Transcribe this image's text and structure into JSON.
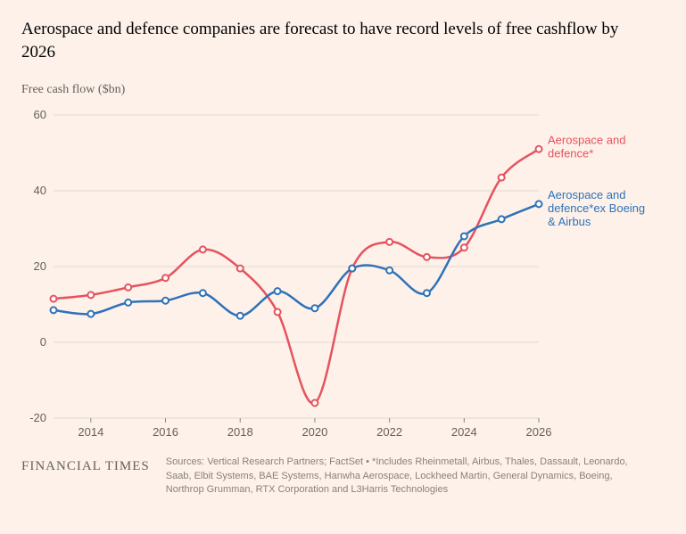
{
  "title": "Aerospace and defence companies are forecast to have record levels of free cashflow by 2026",
  "subtitle": "Free cash flow ($bn)",
  "brand": "FINANCIAL TIMES",
  "source": "Sources: Vertical Research Partners; FactSet • *Includes Rheinmetall, Airbus, Thales, Dassault, Leonardo, Saab, Elbit Systems, BAE Systems, Hanwha Aerospace, Lockheed Martin, General Dynamics, Boeing, Northrop Grumman, RTX Corporation and L3Harris Technologies",
  "chart": {
    "type": "line",
    "background_color": "#fdf1ea",
    "grid_color": "#e3d6cd",
    "axis_text_color": "#66605c",
    "x": {
      "years": [
        2013,
        2014,
        2015,
        2016,
        2017,
        2018,
        2019,
        2020,
        2021,
        2022,
        2023,
        2024,
        2025,
        2026
      ],
      "tick_labels": [
        "2014",
        "2016",
        "2018",
        "2020",
        "2022",
        "2024",
        "2026"
      ],
      "tick_years": [
        2014,
        2016,
        2018,
        2020,
        2022,
        2024,
        2026
      ]
    },
    "y": {
      "min": -20,
      "max": 60,
      "ticks": [
        -20,
        0,
        20,
        40,
        60
      ]
    },
    "series": [
      {
        "id": "ad",
        "label": "Aerospace and defence*",
        "color": "#e5535e",
        "values": [
          11.5,
          12.5,
          14.5,
          17,
          24.5,
          19.5,
          8,
          -16,
          19.5,
          26.5,
          22.5,
          25,
          43.5,
          51
        ]
      },
      {
        "id": "ad_ex",
        "label": "Aerospace and defence*ex Boeing & Airbus",
        "color": "#2e72b8",
        "values": [
          8.5,
          7.5,
          10.5,
          11,
          13,
          7,
          13.5,
          9,
          19.5,
          19,
          13,
          28,
          32.5,
          36.5
        ]
      }
    ],
    "marker_radius": 3.5,
    "line_width": 2.5,
    "label_fontsize": 13
  }
}
